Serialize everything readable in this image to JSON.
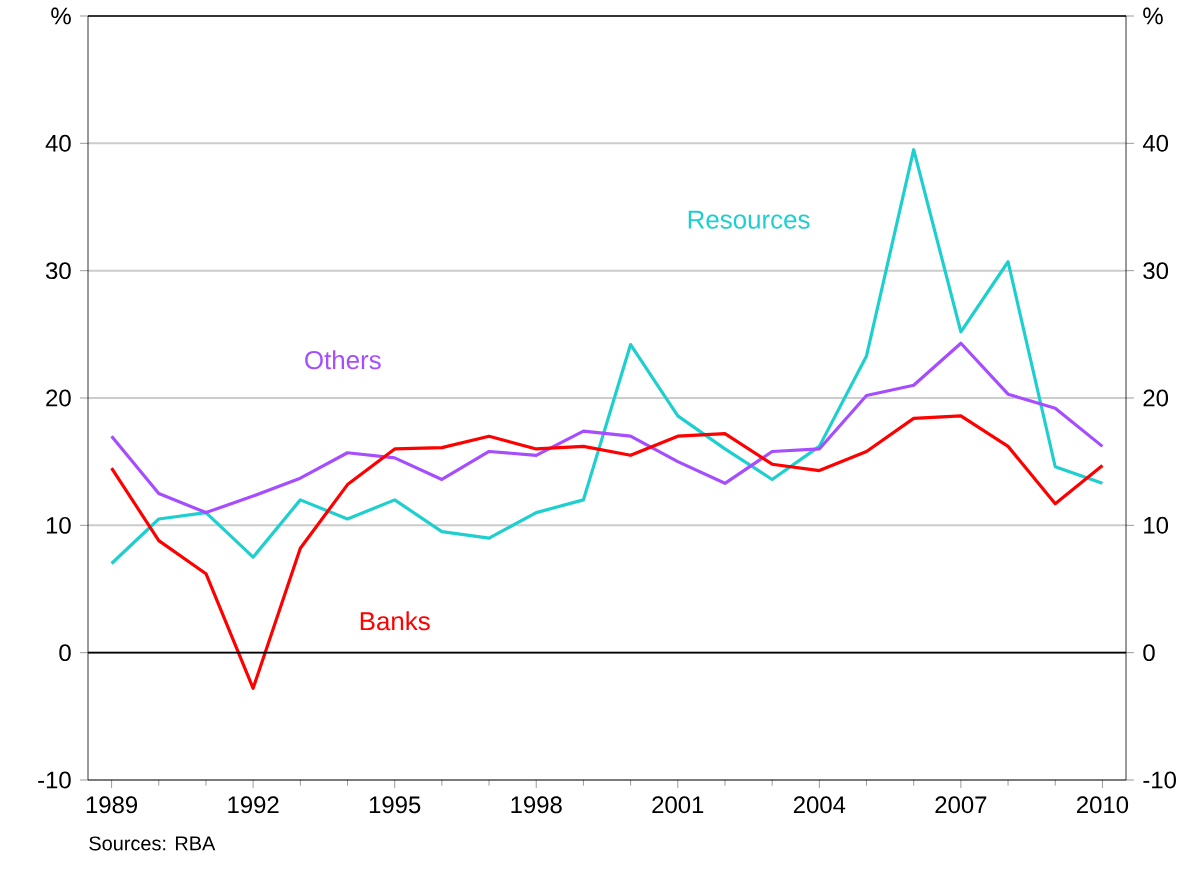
{
  "chart_data": {
    "type": "line",
    "annotations": [
      "Sources: RBA"
    ],
    "x": [
      1989,
      1990,
      1991,
      1992,
      1993,
      1994,
      1995,
      1996,
      1997,
      1998,
      1999,
      2000,
      2001,
      2002,
      2003,
      2004,
      2005,
      2006,
      2007,
      2008,
      2009,
      2010
    ],
    "series": [
      {
        "name": "Resources",
        "color": "#1ecfcf",
        "values": [
          7,
          10.5,
          11,
          7.5,
          12,
          10.5,
          12,
          9.5,
          9,
          11,
          12,
          24.2,
          18.6,
          16,
          13.6,
          16.2,
          23.3,
          39.5,
          25.2,
          30.7,
          14.6,
          13.3
        ]
      },
      {
        "name": "Others",
        "color": "#a64dff",
        "values": [
          17,
          12.5,
          11,
          12.3,
          13.7,
          15.7,
          15.3,
          13.6,
          15.8,
          15.5,
          17.4,
          17,
          15,
          13.3,
          15.8,
          16,
          20.2,
          21,
          24.3,
          20.3,
          19.2,
          16.2
        ]
      },
      {
        "name": "Banks",
        "color": "#ff0000",
        "values": [
          14.5,
          8.8,
          6.2,
          -2.8,
          8.2,
          13.2,
          16,
          16.1,
          17,
          16,
          16.2,
          15.5,
          17,
          17.2,
          14.8,
          14.3,
          15.8,
          18.4,
          18.6,
          16.2,
          11.7,
          14.7
        ]
      }
    ],
    "xlim": [
      1988.5,
      2010.5
    ],
    "xticks": [
      1989,
      1992,
      1995,
      1998,
      2001,
      2004,
      2007,
      2010
    ],
    "ylim": [
      -10,
      50
    ],
    "yticks": [
      -10,
      0,
      10,
      20,
      30,
      40,
      {
        "value": 50,
        "label": "%"
      }
    ],
    "y2lim": [
      -10,
      50
    ],
    "y2ticks": [
      -10,
      0,
      10,
      20,
      30,
      40,
      {
        "value": 50,
        "label": "%"
      }
    ],
    "ref_lines": [
      {
        "axis": "y",
        "value": 0,
        "color": "#000000"
      }
    ],
    "grid": "y",
    "marker": "none",
    "line_style": "solid"
  }
}
